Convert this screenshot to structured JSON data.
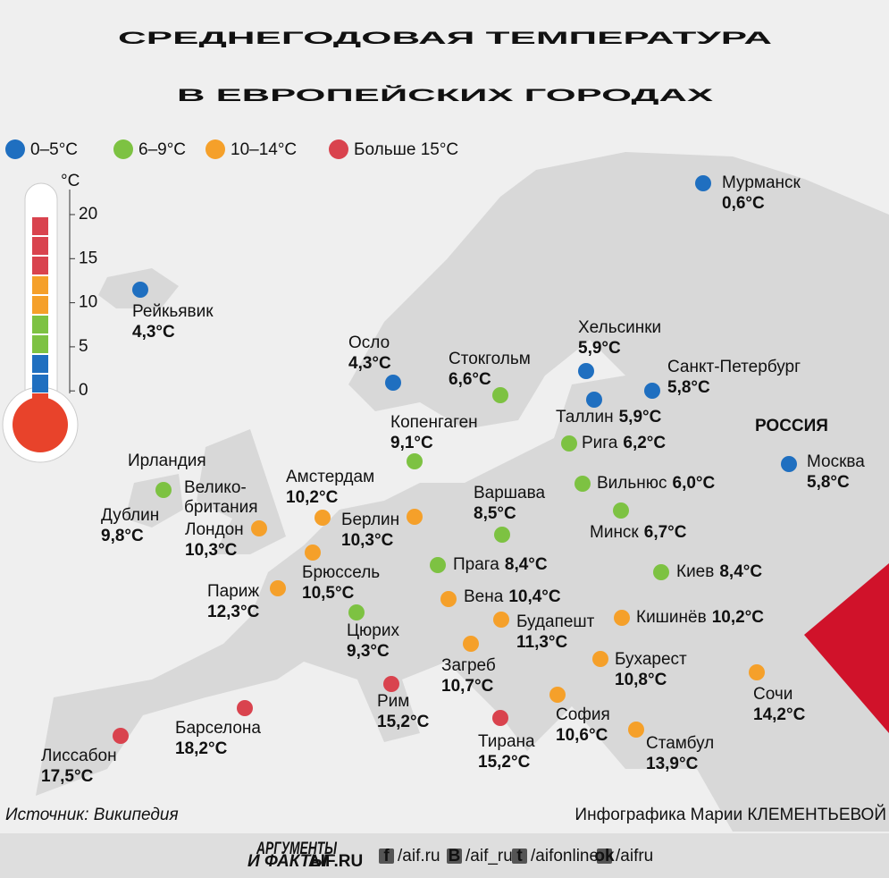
{
  "title": [
    "СРЕДНЕГОДОВАЯ ТЕМПЕРАТУРА",
    "В ЕВРОПЕЙСКИХ ГОРОДАХ"
  ],
  "legend": [
    {
      "label": "0–5°С",
      "color": "#1f6fc0"
    },
    {
      "label": "6–9°С",
      "color": "#7dc242"
    },
    {
      "label": "10–14°С",
      "color": "#f5a02a"
    },
    {
      "label": "Больше 15°С",
      "color": "#d9434e"
    }
  ],
  "thermometer": {
    "unit": "°C",
    "ticks": [
      "20",
      "15",
      "10",
      "5",
      "0"
    ]
  },
  "regions": [
    "Ирландия",
    "Велико-",
    "британия",
    "РОССИЯ"
  ],
  "cities": [
    {
      "name": "Мурманск",
      "temp": "0,6°С",
      "color": "#1f6fc0"
    },
    {
      "name": "Рейкьявик",
      "temp": "4,3°С",
      "color": "#1f6fc0"
    },
    {
      "name": "Осло",
      "temp": "4,3°С",
      "color": "#1f6fc0"
    },
    {
      "name": "Стокгольм",
      "temp": "6,6°С",
      "color": "#7dc242"
    },
    {
      "name": "Хельсинки",
      "temp": "5,9°С",
      "color": "#1f6fc0"
    },
    {
      "name": "Санкт-Петербург",
      "temp": "5,8°С",
      "color": "#1f6fc0"
    },
    {
      "name": "Таллин",
      "temp": "5,9°С",
      "color": "#1f6fc0"
    },
    {
      "name": "Копенгаген",
      "temp": "9,1°С",
      "color": "#7dc242"
    },
    {
      "name": "Рига",
      "temp": "6,2°С",
      "color": "#7dc242"
    },
    {
      "name": "Москва",
      "temp": "5,8°С",
      "color": "#1f6fc0"
    },
    {
      "name": "Дублин",
      "temp": "9,8°С",
      "color": "#7dc242"
    },
    {
      "name": "Амстердам",
      "temp": "10,2°С",
      "color": "#f5a02a"
    },
    {
      "name": "Вильнюс",
      "temp": "6,0°С",
      "color": "#7dc242"
    },
    {
      "name": "Варшава",
      "temp": "8,5°С",
      "color": "#7dc242"
    },
    {
      "name": "Берлин",
      "temp": "10,3°С",
      "color": "#f5a02a"
    },
    {
      "name": "Лондон",
      "temp": "10,3°С",
      "color": "#f5a02a"
    },
    {
      "name": "Минск",
      "temp": "6,7°С",
      "color": "#7dc242"
    },
    {
      "name": "Брюссель",
      "temp": "10,5°С",
      "color": "#f5a02a"
    },
    {
      "name": "Прага",
      "temp": "8,4°С",
      "color": "#7dc242"
    },
    {
      "name": "Киев",
      "temp": "8,4°С",
      "color": "#7dc242"
    },
    {
      "name": "Париж",
      "temp": "12,3°С",
      "color": "#f5a02a"
    },
    {
      "name": "Вена",
      "temp": "10,4°С",
      "color": "#f5a02a"
    },
    {
      "name": "Будапешт",
      "temp": "11,3°С",
      "color": "#f5a02a"
    },
    {
      "name": "Кишинёв",
      "temp": "10,2°С",
      "color": "#f5a02a"
    },
    {
      "name": "Цюрих",
      "temp": "9,3°С",
      "color": "#7dc242"
    },
    {
      "name": "Загреб",
      "temp": "10,7°С",
      "color": "#f5a02a"
    },
    {
      "name": "Бухарест",
      "temp": "10,8°С",
      "color": "#f5a02a"
    },
    {
      "name": "Сочи",
      "temp": "14,2°С",
      "color": "#f5a02a"
    },
    {
      "name": "Рим",
      "temp": "15,2°С",
      "color": "#d9434e"
    },
    {
      "name": "София",
      "temp": "10,6°С",
      "color": "#f5a02a"
    },
    {
      "name": "Тирана",
      "temp": "15,2°С",
      "color": "#d9434e"
    },
    {
      "name": "Стамбул",
      "temp": "13,9°С",
      "color": "#f5a02a"
    },
    {
      "name": "Барселона",
      "temp": "18,2°С",
      "color": "#d9434e"
    },
    {
      "name": "Лиссабон",
      "temp": "17,5°С",
      "color": "#d9434e"
    }
  ],
  "footer": {
    "source": "Источник: Википедия",
    "credit": "Инфографика Марии КЛЕМЕНТЬЕВОЙ",
    "logo": [
      "АРГУМЕНТЫ",
      "И ФАКТЫ",
      "AIF.RU"
    ],
    "social": [
      {
        "icon": "f",
        "handle": "/aif.ru"
      },
      {
        "icon": "B",
        "handle": "/aif_ru"
      },
      {
        "icon": "t",
        "handle": "/aifonline"
      },
      {
        "icon": "ok",
        "handle": "/aifru"
      }
    ]
  }
}
